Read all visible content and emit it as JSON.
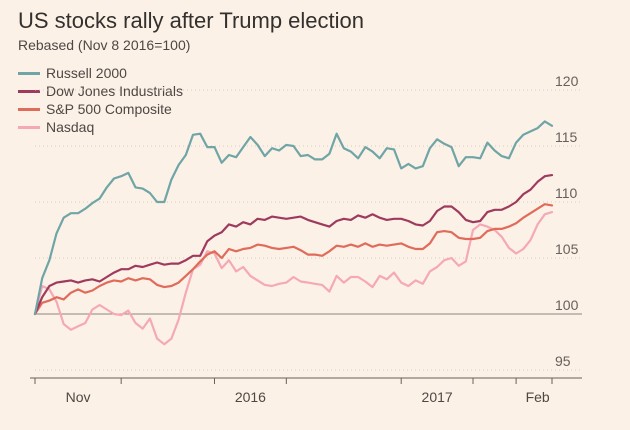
{
  "chart_data": {
    "type": "line",
    "title": "US stocks rally after Trump election",
    "subtitle": "Rebased (Nov 8 2016=100)",
    "ylim": [
      95,
      120
    ],
    "yticks": [
      95,
      100,
      105,
      110,
      115,
      120
    ],
    "xticks": [
      "Nov",
      "2016",
      "2017",
      "Feb"
    ],
    "grid": true,
    "legend_position": "top-left",
    "series": [
      {
        "name": "Russell 2000",
        "color": "#6fa5a6",
        "values": [
          100,
          103.2,
          104.8,
          107.2,
          108.6,
          109.0,
          109.0,
          109.4,
          109.9,
          110.3,
          111.3,
          112.1,
          112.3,
          112.6,
          111.3,
          111.2,
          110.8,
          110.0,
          110.0,
          112.0,
          113.3,
          114.2,
          116.0,
          116.1,
          114.9,
          114.9,
          113.5,
          114.2,
          114.0,
          114.9,
          115.8,
          115.1,
          114.1,
          114.8,
          114.6,
          115.1,
          115.0,
          114.1,
          114.2,
          113.8,
          113.8,
          114.3,
          116.1,
          114.8,
          114.5,
          113.9,
          114.9,
          114.5,
          113.9,
          114.8,
          114.7,
          113.0,
          113.4,
          113.0,
          113.2,
          114.8,
          115.6,
          115.2,
          114.9,
          113.2,
          114.0,
          114.0,
          113.9,
          115.3,
          114.6,
          114.1,
          113.9,
          115.3,
          116.0,
          116.3,
          116.6,
          117.2,
          116.8
        ]
      },
      {
        "name": "Dow Jones Industrials",
        "color": "#9e3a5e",
        "values": [
          100,
          101.5,
          102.5,
          102.8,
          102.9,
          103.0,
          102.8,
          103.0,
          103.1,
          102.9,
          103.3,
          103.7,
          104.0,
          104.0,
          104.3,
          104.2,
          104.4,
          104.6,
          104.4,
          104.5,
          104.5,
          104.8,
          105.2,
          105.2,
          106.5,
          107.0,
          107.3,
          108.0,
          107.8,
          108.2,
          108.0,
          108.5,
          108.4,
          108.7,
          108.6,
          108.5,
          108.6,
          108.7,
          108.4,
          108.2,
          108.0,
          107.8,
          108.3,
          108.5,
          108.4,
          108.8,
          108.6,
          108.9,
          108.6,
          108.4,
          108.5,
          108.5,
          108.3,
          108.0,
          107.9,
          108.3,
          109.2,
          109.6,
          109.6,
          109.1,
          108.4,
          108.2,
          108.3,
          109.1,
          109.3,
          109.3,
          109.6,
          110.0,
          110.7,
          111.1,
          111.8,
          112.3,
          112.4
        ]
      },
      {
        "name": "S&P 500 Composite",
        "color": "#e06b5b",
        "values": [
          100,
          101.0,
          101.2,
          101.5,
          101.3,
          101.9,
          102.2,
          101.9,
          102.1,
          102.5,
          102.8,
          103.0,
          102.9,
          103.2,
          103.0,
          103.2,
          103.1,
          102.6,
          102.4,
          102.5,
          102.8,
          103.4,
          104.0,
          104.7,
          105.3,
          105.6,
          105.0,
          105.8,
          105.6,
          105.8,
          105.9,
          106.2,
          106.1,
          105.9,
          105.8,
          105.9,
          106.0,
          105.7,
          105.3,
          105.3,
          105.2,
          105.6,
          106.1,
          106.0,
          106.2,
          106.0,
          106.3,
          106.0,
          106.2,
          106.1,
          106.2,
          106.3,
          106.0,
          105.8,
          105.8,
          106.3,
          107.3,
          107.4,
          107.3,
          106.8,
          106.7,
          106.7,
          106.8,
          107.4,
          107.6,
          107.6,
          107.8,
          108.1,
          108.6,
          109.0,
          109.4,
          109.8,
          109.7
        ]
      },
      {
        "name": "Nasdaq",
        "color": "#f5a8b5",
        "values": [
          100,
          102.5,
          102.2,
          101.1,
          99.1,
          98.6,
          98.9,
          99.2,
          100.4,
          100.8,
          100.4,
          100.0,
          99.9,
          100.3,
          99.2,
          98.7,
          99.6,
          97.8,
          97.3,
          97.8,
          99.5,
          101.9,
          104.0,
          104.4,
          105.6,
          105.4,
          104.1,
          104.8,
          103.8,
          104.2,
          103.4,
          103.0,
          102.6,
          102.5,
          102.7,
          102.8,
          103.3,
          102.9,
          102.8,
          102.7,
          102.6,
          102.0,
          103.4,
          102.8,
          103.3,
          103.3,
          102.9,
          102.4,
          103.4,
          103.1,
          103.7,
          102.8,
          102.5,
          103.0,
          102.7,
          103.8,
          104.2,
          104.8,
          105.0,
          104.3,
          104.7,
          107.5,
          108.0,
          107.8,
          107.5,
          106.9,
          105.9,
          105.4,
          105.8,
          106.6,
          108.0,
          108.9,
          109.1
        ]
      }
    ]
  }
}
